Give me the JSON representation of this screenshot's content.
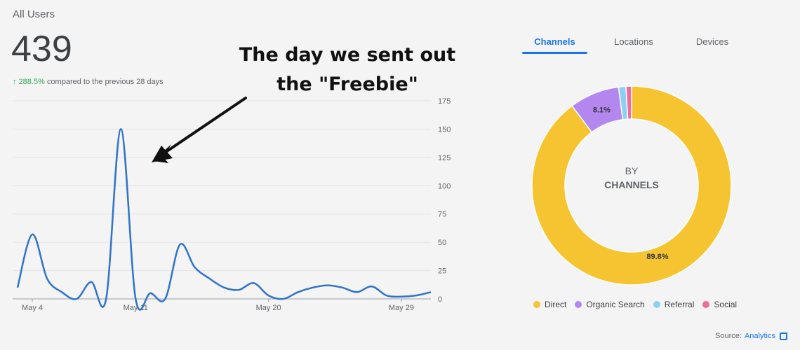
{
  "header": {
    "title": "All Users",
    "metric": "439",
    "change_arrow": "↑",
    "change_pct": "288.5%",
    "change_text": "compared to the previous 28 days"
  },
  "annotation": {
    "line1": "The day we sent out",
    "line2": "the \"Freebie\""
  },
  "tabs": [
    {
      "label": "Channels",
      "active": true
    },
    {
      "label": "Locations",
      "active": false
    },
    {
      "label": "Devices",
      "active": false
    }
  ],
  "donut": {
    "center_line1": "BY",
    "center_line2": "CHANNELS"
  },
  "source": {
    "label": "Source:",
    "link": "Analytics"
  },
  "colors": {
    "line": "#2f73c9",
    "direct": "#f6c430",
    "organic": "#b387ef",
    "referral": "#8dd0f5",
    "social": "#ee6b9a",
    "accent": "#1a73e8"
  },
  "chart_data": [
    {
      "type": "line",
      "x": [
        "May 3",
        "May 4",
        "May 5",
        "May 6",
        "May 7",
        "May 8",
        "May 9",
        "May 10",
        "May 11",
        "May 12",
        "May 13",
        "May 14",
        "May 15",
        "May 16",
        "May 17",
        "May 18",
        "May 19",
        "May 20",
        "May 21",
        "May 22",
        "May 23",
        "May 24",
        "May 25",
        "May 26",
        "May 27",
        "May 28",
        "May 29",
        "May 30",
        "May 31"
      ],
      "series": [
        {
          "values": [
            10,
            57,
            18,
            6,
            0,
            15,
            0,
            150,
            0,
            5,
            0,
            48,
            28,
            18,
            10,
            8,
            14,
            3,
            0,
            6,
            10,
            12,
            10,
            6,
            11,
            3,
            2,
            3,
            6
          ]
        }
      ],
      "x_tick_labels": [
        "May 4",
        "May 11",
        "May 20",
        "May 29"
      ],
      "y_ticks": [
        0,
        25,
        50,
        75,
        100,
        125,
        150,
        175
      ],
      "ylim": [
        0,
        175
      ],
      "grid": true
    },
    {
      "type": "pie",
      "labels": [
        "Direct",
        "Organic Search",
        "Referral",
        "Social"
      ],
      "values": [
        89.8,
        8.1,
        1.2,
        0.9
      ],
      "data_labels": [
        "89.8%",
        "8.1%",
        "",
        ""
      ]
    }
  ]
}
